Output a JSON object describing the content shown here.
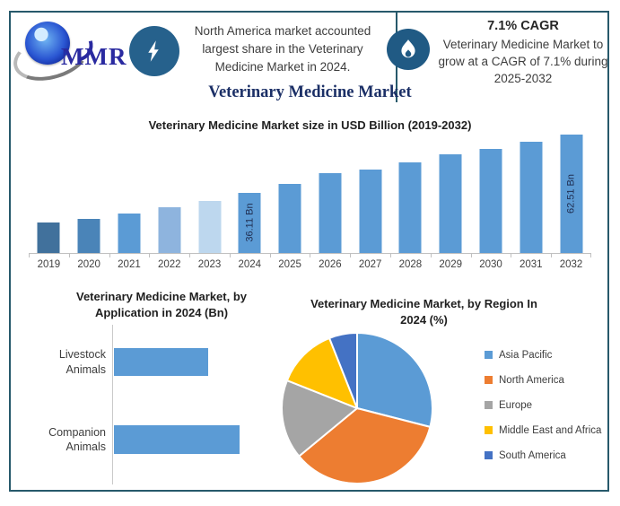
{
  "brand": {
    "logo_text": "MMR"
  },
  "header": {
    "note": "North America market accounted largest share in the Veterinary Medicine Market in 2024.",
    "cagr_title": "7.1% CAGR",
    "cagr_note": "Veterinary Medicine Market to grow at a CAGR of 7.1% during 2025-2032"
  },
  "main_title": "Veterinary Medicine Market",
  "colors": {
    "frame": "#27596b",
    "badge_blue": "#26618c",
    "accent_bar": "#5b9bd5",
    "title_navy": "#1b2f66"
  },
  "chart_data": [
    {
      "type": "bar",
      "title": "Veterinary Medicine Market size in USD Billion (2019-2032)",
      "categories": [
        "2019",
        "2020",
        "2021",
        "2022",
        "2023",
        "2024",
        "2025",
        "2026",
        "2027",
        "2028",
        "2029",
        "2030",
        "2031",
        "2032"
      ],
      "values": [
        22.4,
        24.2,
        26.7,
        29.5,
        32.3,
        36.11,
        40.1,
        44.8,
        46.7,
        50.0,
        53.4,
        55.8,
        59.2,
        62.51
      ],
      "bar_colors": [
        "#41719c",
        "#4a84b8",
        "#5b9bd5",
        "#8eb4de",
        "#bdd7ee",
        "#5b9bd5",
        "#5b9bd5",
        "#5b9bd5",
        "#5b9bd5",
        "#5b9bd5",
        "#5b9bd5",
        "#5b9bd5",
        "#5b9bd5",
        "#5b9bd5"
      ],
      "data_labels": {
        "2024": "36.11 Bn",
        "2032": "62.51 Bn"
      },
      "ylabel": "USD Billion",
      "grid": false,
      "legend": false
    },
    {
      "type": "bar",
      "orientation": "horizontal",
      "title": "Veterinary Medicine Market, by Application in 2024 (Bn)",
      "categories": [
        "Livestock Animals",
        "Companion Animals"
      ],
      "values": [
        15.5,
        20.7
      ],
      "color": "#5b9bd5",
      "grid": false,
      "legend": false
    },
    {
      "type": "pie",
      "title": "Veterinary Medicine Market, by Region In 2024 (%)",
      "labels": [
        "Asia Pacific",
        "North America",
        "Europe",
        "Middle East and Africa",
        "South America"
      ],
      "values": [
        29,
        35,
        17,
        13,
        6
      ],
      "colors": [
        "#5b9bd5",
        "#ed7d31",
        "#a5a5a5",
        "#ffc000",
        "#4472c4"
      ],
      "start_angle_deg": 0,
      "direction": "clockwise",
      "legend_position": "right"
    }
  ]
}
